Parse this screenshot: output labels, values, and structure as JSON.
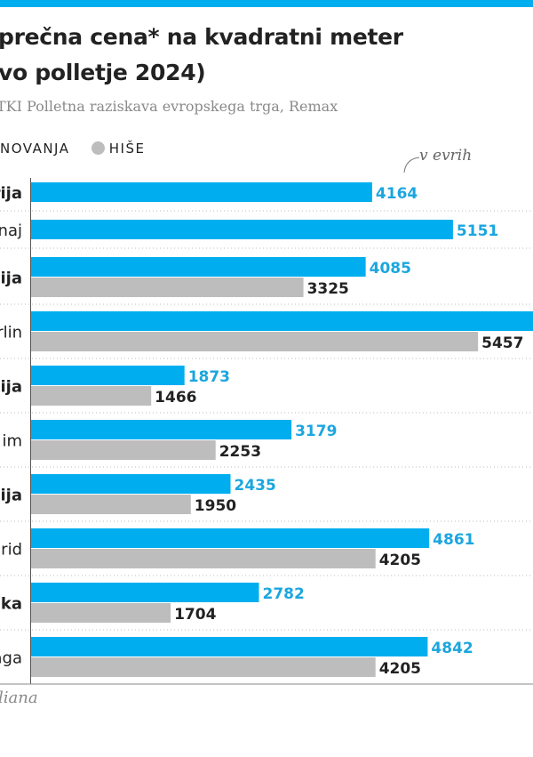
{
  "title_lines": [
    "prečna cena* na kvadratni meter",
    "vo polletje 2024)"
  ],
  "source": "TKI Polletna raziskava evropskega trga, Remax",
  "legend": [
    {
      "label": "NOVANJA",
      "color": "#00aeef"
    },
    {
      "label": "HIŠE",
      "color": "#bdbdbd"
    }
  ],
  "unit_note": "v evrih",
  "footnote": "liana",
  "colors": {
    "apartments": "#00aeef",
    "apartments_label": "#1ba6df",
    "houses": "#bdbdbd",
    "houses_label": "#222222"
  },
  "chart_data": {
    "type": "bar",
    "orientation": "horizontal",
    "grid": false,
    "categories": [
      "rija",
      "naj",
      "čija",
      "rlin",
      "lija",
      "im",
      "nija",
      "rid",
      "ška",
      "aga"
    ],
    "category_bold": [
      true,
      false,
      true,
      false,
      true,
      false,
      true,
      false,
      true,
      false
    ],
    "series": [
      {
        "name": "NOVANJA",
        "values": [
          4164,
          5151,
          4085,
          null,
          1873,
          3179,
          2435,
          4861,
          2782,
          4842
        ]
      },
      {
        "name": "HIŠE",
        "values": [
          null,
          null,
          3325,
          5457,
          1466,
          2253,
          1950,
          4205,
          1704,
          4205
        ]
      }
    ],
    "xlim": [
      0,
      6500
    ]
  }
}
